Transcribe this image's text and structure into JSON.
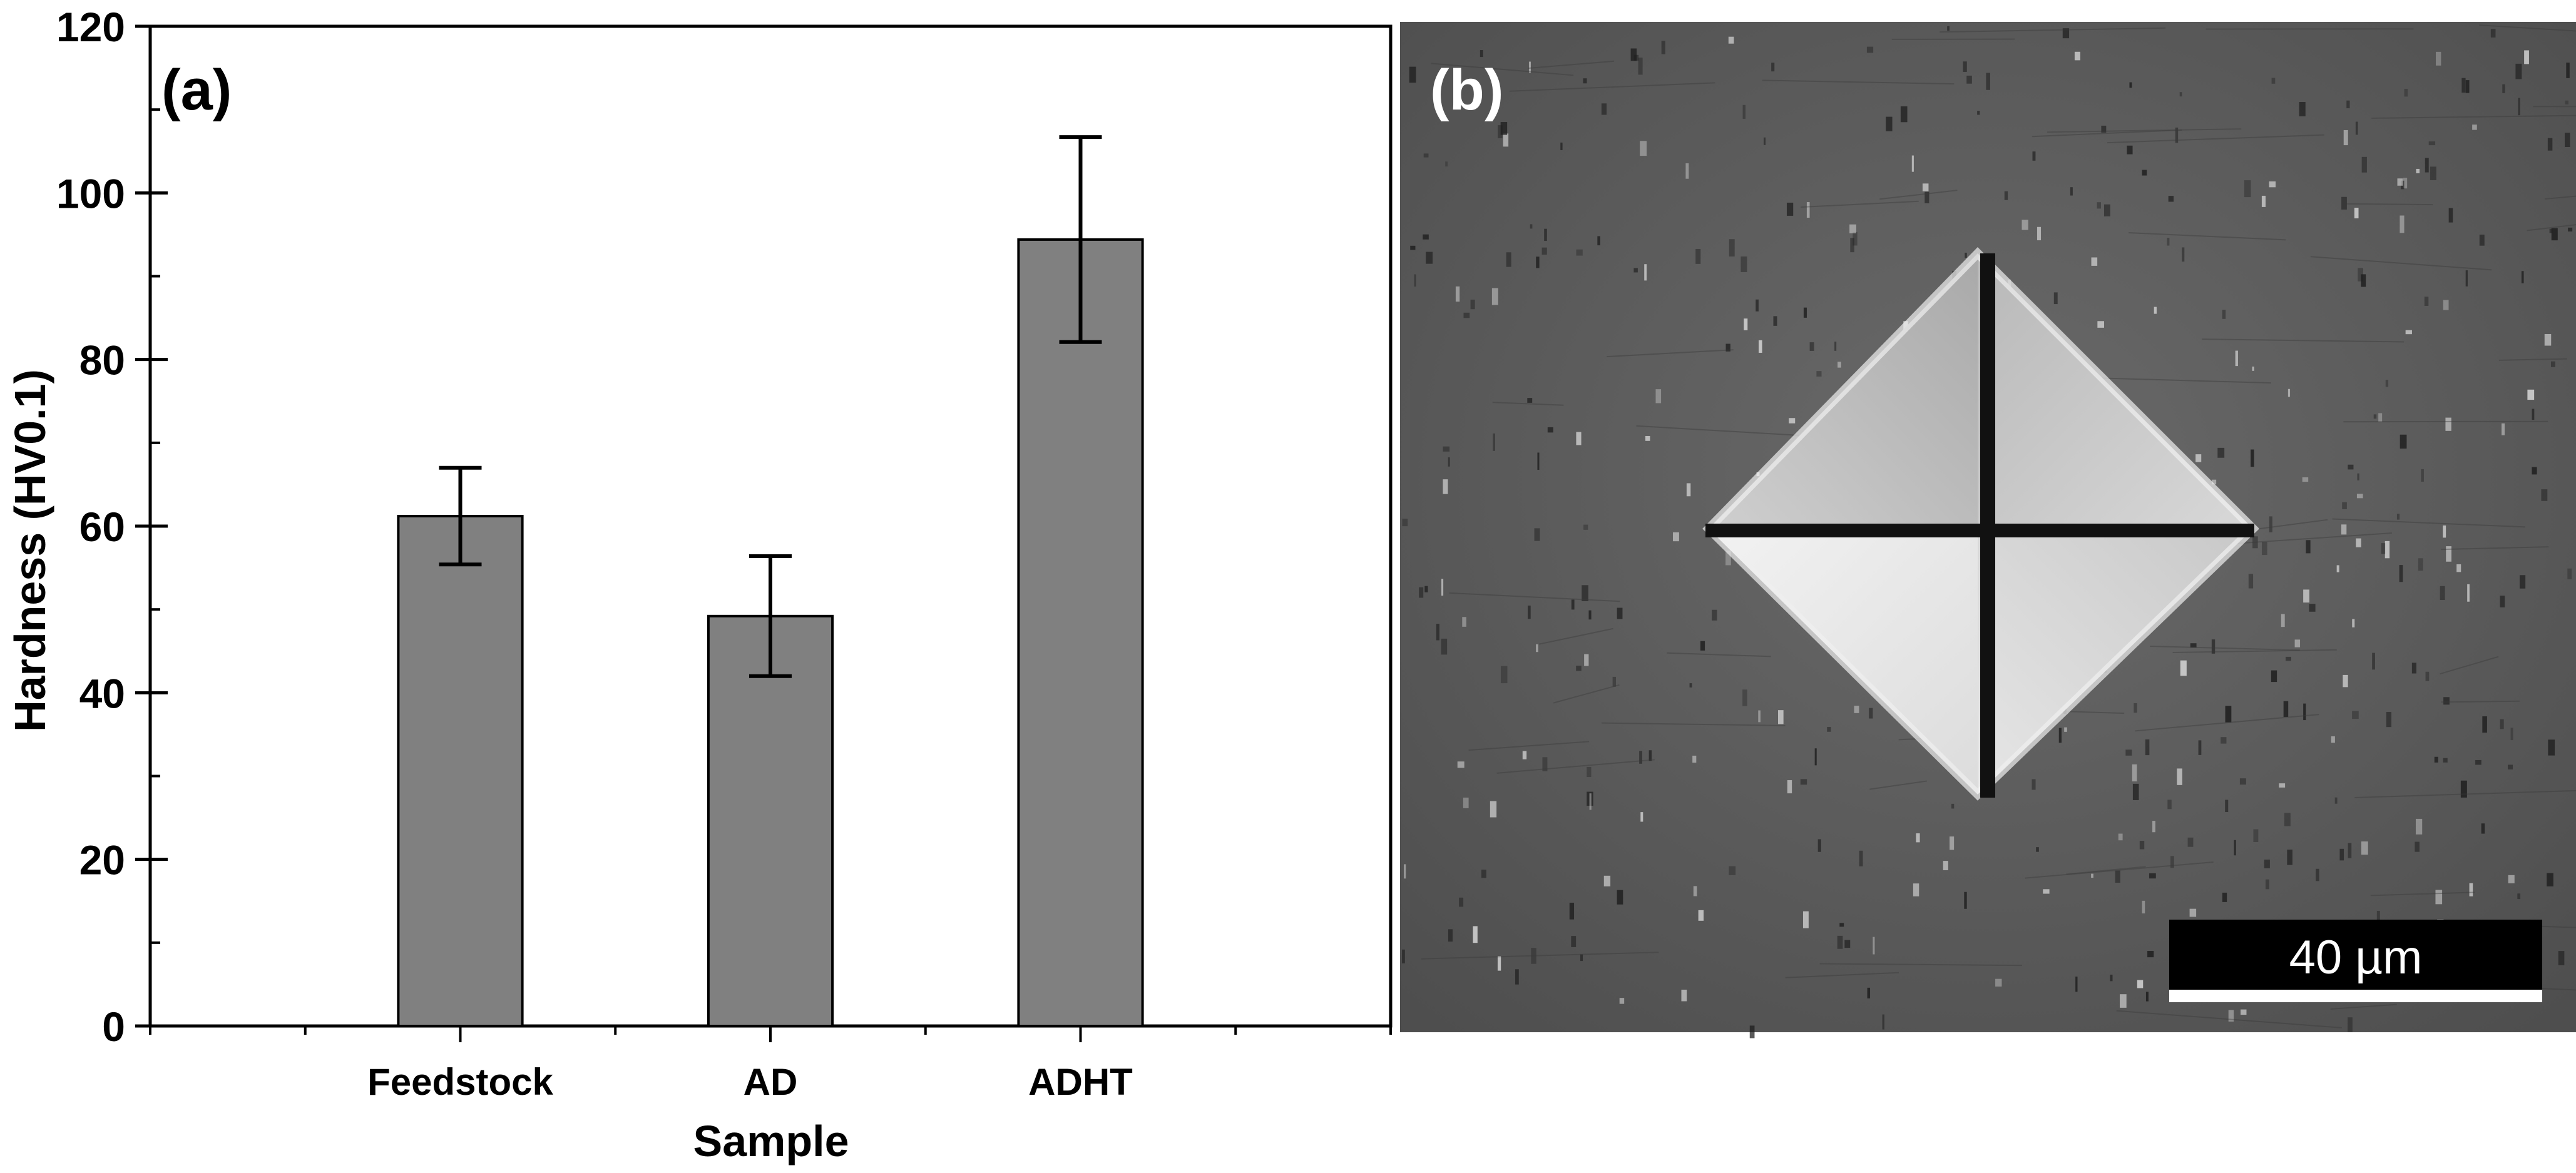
{
  "chart_data": {
    "type": "bar",
    "panel_label": "(a)",
    "title": "",
    "xlabel": "Sample",
    "ylabel": "Hardness (HV0.1)",
    "categories": [
      "Feedstock",
      "AD",
      "ADHT"
    ],
    "values": [
      61.2,
      49.2,
      94.4
    ],
    "errors": [
      5.8,
      7.2,
      12.3
    ],
    "ylim": [
      0,
      120
    ],
    "yticks": [
      0,
      20,
      40,
      60,
      80,
      100,
      120
    ],
    "grid": false,
    "bar_color": "#808080",
    "error_color": "#000000"
  },
  "micrograph": {
    "panel_label": "(b)",
    "scale_bar_label": "40 µm",
    "description_colors": {
      "background": "#606060",
      "indent_light": "#e8e8e8"
    }
  }
}
